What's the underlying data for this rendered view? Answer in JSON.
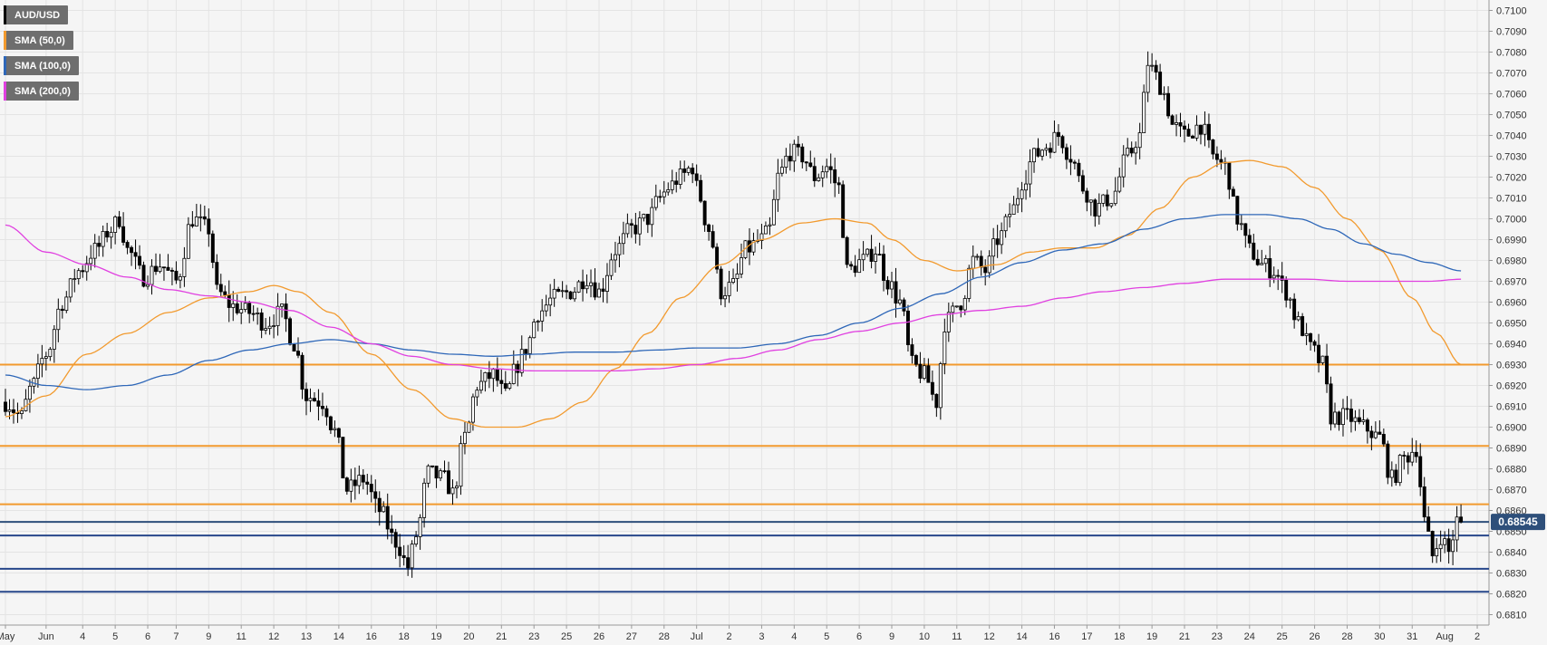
{
  "chart_data": {
    "type": "candlestick",
    "instrument": "AUD/USD",
    "last_price_label": "0.68545",
    "ylim": [
      0.6805,
      0.7105
    ],
    "y_ticks": [
      "0.7100",
      "0.7090",
      "0.7080",
      "0.7070",
      "0.7060",
      "0.7050",
      "0.7040",
      "0.7030",
      "0.7020",
      "0.7010",
      "0.7000",
      "0.6990",
      "0.6980",
      "0.6970",
      "0.6960",
      "0.6950",
      "0.6940",
      "0.6930",
      "0.6920",
      "0.6910",
      "0.6900",
      "0.6890",
      "0.6880",
      "0.6870",
      "0.6860",
      "0.6850",
      "0.6840",
      "0.6830",
      "0.6820",
      "0.6810"
    ],
    "x_ticks": [
      {
        "label": "May",
        "bar": 0
      },
      {
        "label": "Jun",
        "bar": 10
      },
      {
        "label": "4",
        "bar": 19
      },
      {
        "label": "5",
        "bar": 27
      },
      {
        "label": "6",
        "bar": 35
      },
      {
        "label": "7",
        "bar": 42
      },
      {
        "label": "9",
        "bar": 50
      },
      {
        "label": "11",
        "bar": 58
      },
      {
        "label": "12",
        "bar": 66
      },
      {
        "label": "13",
        "bar": 74
      },
      {
        "label": "14",
        "bar": 82
      },
      {
        "label": "16",
        "bar": 90
      },
      {
        "label": "18",
        "bar": 98
      },
      {
        "label": "19",
        "bar": 106
      },
      {
        "label": "20",
        "bar": 114
      },
      {
        "label": "21",
        "bar": 122
      },
      {
        "label": "23",
        "bar": 130
      },
      {
        "label": "25",
        "bar": 138
      },
      {
        "label": "26",
        "bar": 146
      },
      {
        "label": "27",
        "bar": 154
      },
      {
        "label": "28",
        "bar": 162
      },
      {
        "label": "Jul",
        "bar": 170
      },
      {
        "label": "2",
        "bar": 178
      },
      {
        "label": "3",
        "bar": 186
      },
      {
        "label": "4",
        "bar": 194
      },
      {
        "label": "5",
        "bar": 202
      },
      {
        "label": "6",
        "bar": 210
      },
      {
        "label": "9",
        "bar": 218
      },
      {
        "label": "10",
        "bar": 226
      },
      {
        "label": "11",
        "bar": 234
      },
      {
        "label": "12",
        "bar": 242
      },
      {
        "label": "14",
        "bar": 250
      },
      {
        "label": "16",
        "bar": 258
      },
      {
        "label": "17",
        "bar": 266
      },
      {
        "label": "18",
        "bar": 274
      },
      {
        "label": "19",
        "bar": 282
      },
      {
        "label": "21",
        "bar": 290
      },
      {
        "label": "23",
        "bar": 298
      },
      {
        "label": "24",
        "bar": 306
      },
      {
        "label": "25",
        "bar": 314
      },
      {
        "label": "26",
        "bar": 322
      },
      {
        "label": "28",
        "bar": 330
      },
      {
        "label": "30",
        "bar": 338
      },
      {
        "label": "31",
        "bar": 346
      },
      {
        "label": "Aug",
        "bar": 354
      },
      {
        "label": "2",
        "bar": 362
      }
    ],
    "bar_count": 364,
    "close_anchors": [
      [
        0,
        0.6912
      ],
      [
        4,
        0.6905
      ],
      [
        6,
        0.6918
      ],
      [
        10,
        0.6935
      ],
      [
        14,
        0.696
      ],
      [
        18,
        0.6975
      ],
      [
        22,
        0.6985
      ],
      [
        26,
        0.6995
      ],
      [
        28,
        0.7
      ],
      [
        30,
        0.6985
      ],
      [
        34,
        0.6972
      ],
      [
        38,
        0.6978
      ],
      [
        42,
        0.697
      ],
      [
        46,
        0.7
      ],
      [
        50,
        0.6995
      ],
      [
        52,
        0.6965
      ],
      [
        56,
        0.6958
      ],
      [
        60,
        0.6955
      ],
      [
        64,
        0.695
      ],
      [
        68,
        0.6955
      ],
      [
        71,
        0.694
      ],
      [
        74,
        0.6915
      ],
      [
        78,
        0.6912
      ],
      [
        81,
        0.6898
      ],
      [
        84,
        0.687
      ],
      [
        88,
        0.6875
      ],
      [
        92,
        0.686
      ],
      [
        96,
        0.6845
      ],
      [
        99,
        0.6833
      ],
      [
        101,
        0.6848
      ],
      [
        104,
        0.6878
      ],
      [
        108,
        0.6875
      ],
      [
        110,
        0.6868
      ],
      [
        113,
        0.6895
      ],
      [
        116,
        0.692
      ],
      [
        120,
        0.6925
      ],
      [
        123,
        0.6915
      ],
      [
        126,
        0.693
      ],
      [
        128,
        0.6938
      ],
      [
        131,
        0.6955
      ],
      [
        135,
        0.6962
      ],
      [
        139,
        0.6965
      ],
      [
        143,
        0.6972
      ],
      [
        146,
        0.6965
      ],
      [
        150,
        0.6985
      ],
      [
        154,
        0.6995
      ],
      [
        158,
        0.7
      ],
      [
        161,
        0.701
      ],
      [
        163,
        0.7015
      ],
      [
        166,
        0.702
      ],
      [
        169,
        0.7025
      ],
      [
        170,
        0.7015
      ],
      [
        173,
        0.6995
      ],
      [
        176,
        0.6965
      ],
      [
        179,
        0.6968
      ],
      [
        182,
        0.6985
      ],
      [
        186,
        0.699
      ],
      [
        188,
        0.6995
      ],
      [
        190,
        0.702
      ],
      [
        193,
        0.7032
      ],
      [
        196,
        0.703
      ],
      [
        199,
        0.702
      ],
      [
        202,
        0.7025
      ],
      [
        205,
        0.7015
      ],
      [
        207,
        0.6975
      ],
      [
        211,
        0.698
      ],
      [
        214,
        0.6985
      ],
      [
        217,
        0.697
      ],
      [
        220,
        0.696
      ],
      [
        223,
        0.693
      ],
      [
        226,
        0.6925
      ],
      [
        229,
        0.6912
      ],
      [
        231,
        0.695
      ],
      [
        235,
        0.696
      ],
      [
        238,
        0.698
      ],
      [
        241,
        0.6975
      ],
      [
        244,
        0.699
      ],
      [
        248,
        0.7005
      ],
      [
        250,
        0.7018
      ],
      [
        253,
        0.703
      ],
      [
        256,
        0.7035
      ],
      [
        259,
        0.704
      ],
      [
        262,
        0.703
      ],
      [
        265,
        0.7015
      ],
      [
        268,
        0.7005
      ],
      [
        272,
        0.701
      ],
      [
        276,
        0.703
      ],
      [
        279,
        0.704
      ],
      [
        281,
        0.7075
      ],
      [
        283,
        0.7068
      ],
      [
        285,
        0.706
      ],
      [
        287,
        0.7045
      ],
      [
        290,
        0.704
      ],
      [
        294,
        0.7045
      ],
      [
        297,
        0.703
      ],
      [
        300,
        0.7025
      ],
      [
        303,
        0.7
      ],
      [
        306,
        0.6985
      ],
      [
        309,
        0.6978
      ],
      [
        312,
        0.6975
      ],
      [
        315,
        0.6965
      ],
      [
        318,
        0.695
      ],
      [
        321,
        0.6938
      ],
      [
        324,
        0.693
      ],
      [
        326,
        0.6905
      ],
      [
        330,
        0.6905
      ],
      [
        334,
        0.69
      ],
      [
        338,
        0.6895
      ],
      [
        341,
        0.6875
      ],
      [
        344,
        0.6885
      ],
      [
        347,
        0.689
      ],
      [
        349,
        0.6855
      ],
      [
        351,
        0.6838
      ],
      [
        353,
        0.6848
      ],
      [
        355,
        0.684
      ],
      [
        357,
        0.6855
      ],
      [
        358,
        0.68545
      ]
    ],
    "series": [
      {
        "name": "SMA (50,0)",
        "color": "#f29a2e",
        "anchors": [
          [
            0,
            0.6905
          ],
          [
            10,
            0.6915
          ],
          [
            20,
            0.6935
          ],
          [
            30,
            0.6945
          ],
          [
            40,
            0.6955
          ],
          [
            50,
            0.6962
          ],
          [
            60,
            0.6965
          ],
          [
            66,
            0.6968
          ],
          [
            72,
            0.6965
          ],
          [
            80,
            0.6955
          ],
          [
            90,
            0.6935
          ],
          [
            100,
            0.6918
          ],
          [
            110,
            0.6904
          ],
          [
            118,
            0.69
          ],
          [
            126,
            0.69
          ],
          [
            134,
            0.6904
          ],
          [
            142,
            0.6912
          ],
          [
            150,
            0.6928
          ],
          [
            158,
            0.6945
          ],
          [
            166,
            0.6962
          ],
          [
            176,
            0.6978
          ],
          [
            186,
            0.699
          ],
          [
            196,
            0.6998
          ],
          [
            204,
            0.7
          ],
          [
            212,
            0.6998
          ],
          [
            218,
            0.699
          ],
          [
            226,
            0.698
          ],
          [
            234,
            0.6975
          ],
          [
            244,
            0.6978
          ],
          [
            252,
            0.6984
          ],
          [
            260,
            0.6986
          ],
          [
            268,
            0.6986
          ],
          [
            276,
            0.6992
          ],
          [
            284,
            0.7005
          ],
          [
            292,
            0.702
          ],
          [
            300,
            0.7027
          ],
          [
            306,
            0.7028
          ],
          [
            314,
            0.7025
          ],
          [
            322,
            0.7015
          ],
          [
            330,
            0.7
          ],
          [
            338,
            0.6985
          ],
          [
            346,
            0.6962
          ],
          [
            352,
            0.6945
          ],
          [
            358,
            0.693
          ]
        ]
      },
      {
        "name": "SMA (100,0)",
        "color": "#2e67b8",
        "anchors": [
          [
            0,
            0.6925
          ],
          [
            10,
            0.692
          ],
          [
            20,
            0.6918
          ],
          [
            30,
            0.692
          ],
          [
            40,
            0.6925
          ],
          [
            50,
            0.6932
          ],
          [
            60,
            0.6937
          ],
          [
            70,
            0.694
          ],
          [
            80,
            0.6942
          ],
          [
            90,
            0.694
          ],
          [
            100,
            0.6937
          ],
          [
            110,
            0.6935
          ],
          [
            120,
            0.6934
          ],
          [
            130,
            0.6935
          ],
          [
            140,
            0.6936
          ],
          [
            150,
            0.6936
          ],
          [
            160,
            0.6937
          ],
          [
            170,
            0.6938
          ],
          [
            180,
            0.6938
          ],
          [
            190,
            0.694
          ],
          [
            200,
            0.6944
          ],
          [
            210,
            0.695
          ],
          [
            220,
            0.6957
          ],
          [
            230,
            0.6964
          ],
          [
            240,
            0.6972
          ],
          [
            250,
            0.6979
          ],
          [
            260,
            0.6985
          ],
          [
            270,
            0.6988
          ],
          [
            280,
            0.6995
          ],
          [
            290,
            0.7
          ],
          [
            300,
            0.7002
          ],
          [
            310,
            0.7002
          ],
          [
            318,
            0.7
          ],
          [
            326,
            0.6995
          ],
          [
            334,
            0.6988
          ],
          [
            342,
            0.6983
          ],
          [
            350,
            0.6979
          ],
          [
            358,
            0.6975
          ]
        ]
      },
      {
        "name": "SMA (200,0)",
        "color": "#e040e0",
        "anchors": [
          [
            0,
            0.6997
          ],
          [
            10,
            0.6984
          ],
          [
            20,
            0.6978
          ],
          [
            30,
            0.6972
          ],
          [
            40,
            0.6966
          ],
          [
            50,
            0.6963
          ],
          [
            60,
            0.696
          ],
          [
            70,
            0.6956
          ],
          [
            80,
            0.6948
          ],
          [
            90,
            0.694
          ],
          [
            100,
            0.6934
          ],
          [
            110,
            0.693
          ],
          [
            120,
            0.6928
          ],
          [
            130,
            0.6927
          ],
          [
            140,
            0.6927
          ],
          [
            150,
            0.6927
          ],
          [
            160,
            0.6928
          ],
          [
            170,
            0.693
          ],
          [
            180,
            0.6933
          ],
          [
            190,
            0.6937
          ],
          [
            200,
            0.6942
          ],
          [
            210,
            0.6946
          ],
          [
            220,
            0.695
          ],
          [
            230,
            0.6954
          ],
          [
            240,
            0.6956
          ],
          [
            250,
            0.6958
          ],
          [
            260,
            0.6962
          ],
          [
            270,
            0.6965
          ],
          [
            280,
            0.6967
          ],
          [
            290,
            0.6969
          ],
          [
            300,
            0.6971
          ],
          [
            310,
            0.6971
          ],
          [
            320,
            0.6971
          ],
          [
            330,
            0.697
          ],
          [
            340,
            0.697
          ],
          [
            350,
            0.697
          ],
          [
            358,
            0.6971
          ]
        ]
      }
    ],
    "horizontal_levels": [
      {
        "value": 0.693,
        "color": "#f29a2e"
      },
      {
        "value": 0.6891,
        "color": "#f29a2e"
      },
      {
        "value": 0.6863,
        "color": "#f29a2e"
      },
      {
        "value": 0.68545,
        "color": "#2e4f7a"
      },
      {
        "value": 0.6848,
        "color": "#27478a"
      },
      {
        "value": 0.6832,
        "color": "#27478a"
      },
      {
        "value": 0.6821,
        "color": "#27478a"
      }
    ]
  },
  "legend": [
    {
      "label": "AUD/USD",
      "color": "#000000"
    },
    {
      "label": "SMA (50,0)",
      "color": "#f29a2e"
    },
    {
      "label": "SMA (100,0)",
      "color": "#2e67b8"
    },
    {
      "label": "SMA (200,0)",
      "color": "#e040e0"
    }
  ]
}
